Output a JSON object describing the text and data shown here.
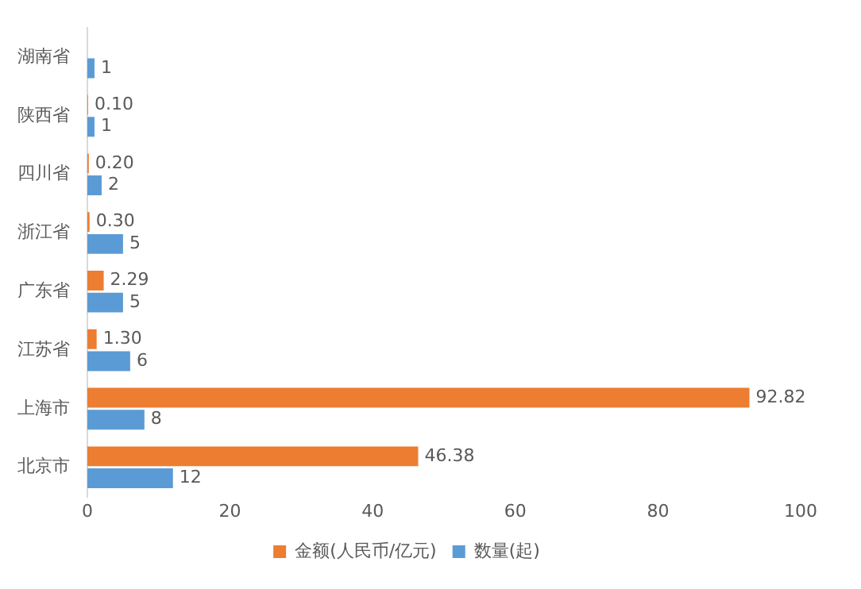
{
  "chart_data": {
    "type": "bar",
    "orientation": "horizontal",
    "categories": [
      "湖南省",
      "陕西省",
      "四川省",
      "浙江省",
      "广东省",
      "江苏省",
      "上海市",
      "北京市"
    ],
    "series": [
      {
        "name": "金额(人民币/亿元)",
        "color": "#ed7d31",
        "values": [
          null,
          0.1,
          0.2,
          0.3,
          2.29,
          1.3,
          92.82,
          46.38
        ],
        "value_labels": [
          null,
          "0.10",
          "0.20",
          "0.30",
          "2.29",
          "1.30",
          "92.82",
          "46.38"
        ]
      },
      {
        "name": "数量(起)",
        "color": "#5b9bd5",
        "values": [
          1,
          1,
          2,
          5,
          5,
          6,
          8,
          12
        ],
        "value_labels": [
          "1",
          "1",
          "2",
          "5",
          "5",
          "6",
          "8",
          "12"
        ]
      }
    ],
    "xlim": [
      0,
      100
    ],
    "xticks": [
      0,
      20,
      40,
      60,
      80,
      100
    ],
    "legend": "bottom"
  }
}
